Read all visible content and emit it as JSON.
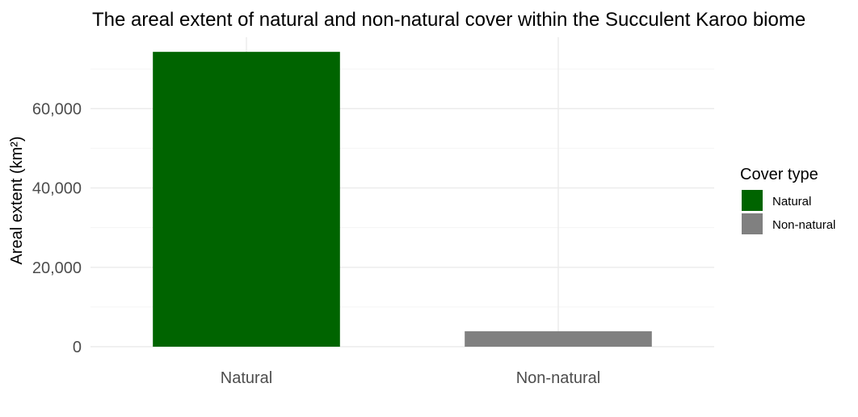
{
  "chart_data": {
    "type": "bar",
    "title": "The areal extent of natural and non-natural cover within the Succulent Karoo biome",
    "xlabel": "",
    "ylabel": "Areal extent (km²)",
    "categories": [
      "Natural",
      "Non-natural"
    ],
    "values": [
      74300,
      3900
    ],
    "colors": [
      "#006400",
      "#808080"
    ],
    "ylim": [
      0,
      78000
    ],
    "yticks": [
      0,
      20000,
      40000,
      60000
    ],
    "ytick_labels": [
      "0",
      "20,000",
      "40,000",
      "60,000"
    ],
    "grid": true,
    "legend": {
      "title": "Cover type",
      "position": "right",
      "entries": [
        {
          "label": "Natural",
          "color": "#006400"
        },
        {
          "label": "Non-natural",
          "color": "#808080"
        }
      ]
    }
  }
}
